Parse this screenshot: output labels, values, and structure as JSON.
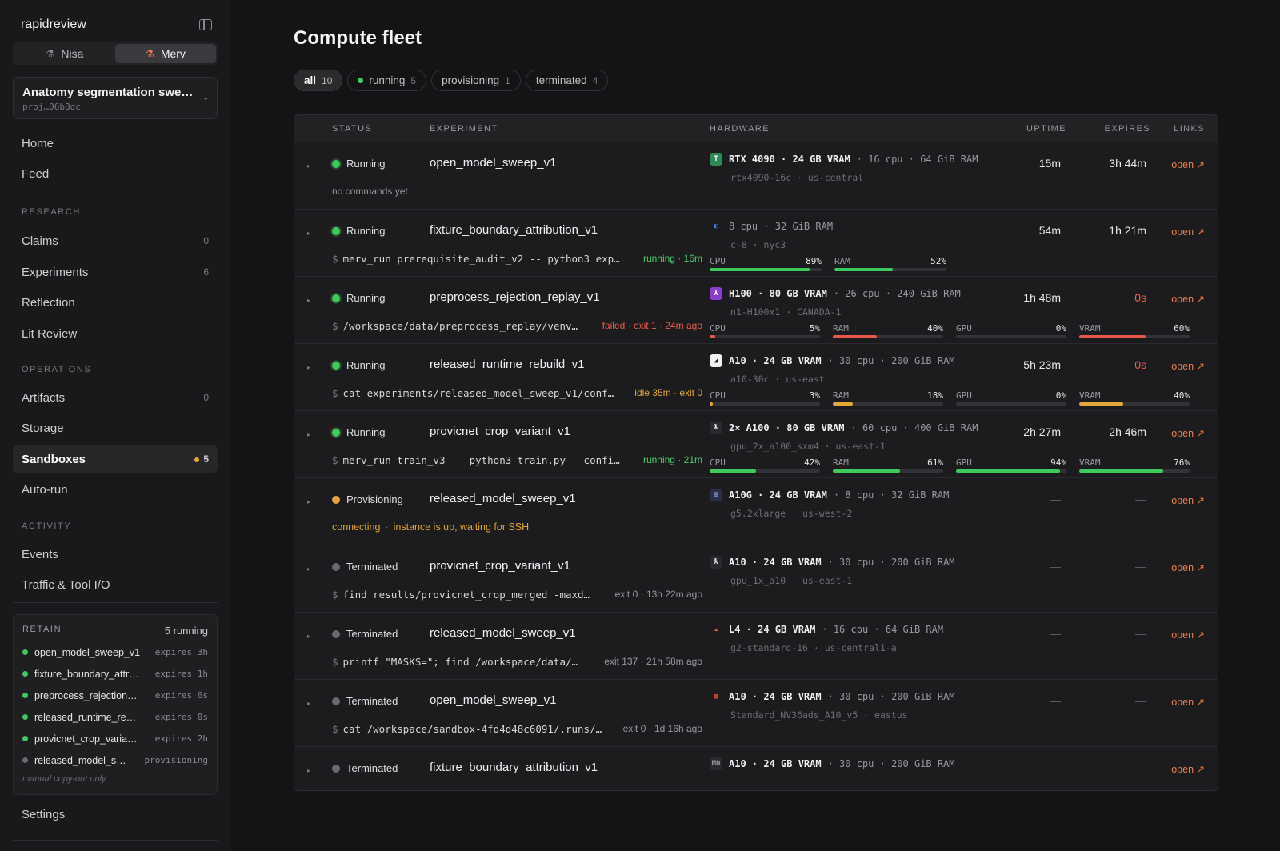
{
  "app": {
    "name": "rapidreview"
  },
  "users": [
    {
      "name": "Nisa",
      "active": false
    },
    {
      "name": "Merv",
      "active": true
    }
  ],
  "project": {
    "name": "Anatomy segmentation swe…",
    "id": "proj…06b8dc"
  },
  "nav": {
    "top": [
      {
        "label": "Home"
      },
      {
        "label": "Feed"
      }
    ],
    "research": {
      "label": "RESEARCH",
      "items": [
        {
          "label": "Claims",
          "count": "0"
        },
        {
          "label": "Experiments",
          "count": "6"
        },
        {
          "label": "Reflection"
        },
        {
          "label": "Lit Review"
        }
      ]
    },
    "operations": {
      "label": "OPERATIONS",
      "items": [
        {
          "label": "Artifacts",
          "count": "0"
        },
        {
          "label": "Storage"
        },
        {
          "label": "Sandboxes",
          "count": "5"
        },
        {
          "label": "Auto-run"
        }
      ]
    },
    "activity": {
      "label": "ACTIVITY",
      "items": [
        {
          "label": "Events"
        },
        {
          "label": "Traffic & Tool I/O"
        }
      ]
    },
    "settings": "Settings"
  },
  "retain": {
    "title": "RETAIN",
    "count": "5 running",
    "items": [
      {
        "name": "open_model_sweep_v1",
        "expires": "expires 3h",
        "status": "running"
      },
      {
        "name": "fixture_boundary_attr…",
        "expires": "expires 1h",
        "status": "running"
      },
      {
        "name": "preprocess_rejection…",
        "expires": "expires 0s",
        "status": "running"
      },
      {
        "name": "released_runtime_re…",
        "expires": "expires 0s",
        "status": "running"
      },
      {
        "name": "provicnet_crop_varia…",
        "expires": "expires 2h",
        "status": "running"
      },
      {
        "name": "released_model_s…",
        "expires": "provisioning",
        "status": "provisioning"
      }
    ],
    "note": "manual copy-out only"
  },
  "page": {
    "title": "Compute fleet"
  },
  "filters": [
    {
      "label": "all",
      "count": "10",
      "active": true
    },
    {
      "label": "running",
      "count": "5",
      "dot": true
    },
    {
      "label": "provisioning",
      "count": "1"
    },
    {
      "label": "terminated",
      "count": "4"
    }
  ],
  "table": {
    "headers": {
      "status": "STATUS",
      "experiment": "EXPERIMENT",
      "hardware": "HARDWARE",
      "uptime": "UPTIME",
      "expires": "EXPIRES",
      "links": "LINKS"
    },
    "link_label": "open ↗",
    "rows": [
      {
        "status": "Running",
        "experiment": "open_model_sweep_v1",
        "cmd_plain": "no commands yet",
        "hw_icon": "T",
        "hw_icon_color": "#ffffff",
        "hw_icon_bg": "#2e8b57",
        "hw_main": "RTX 4090 · 24 GB VRAM",
        "hw_extra": "· 16 cpu · 64 GiB RAM",
        "hw_sub": "rtx4090-16c · us-central",
        "uptime": "15m",
        "expires": "3h 44m"
      },
      {
        "status": "Running",
        "experiment": "fixture_boundary_attribution_v1",
        "cmd": "merv_run prerequisite_audit_v2 -- python3 exp…",
        "cmd_meta": "running · 16m",
        "cmd_meta_color": "green",
        "hw_icon": "◐",
        "hw_icon_color": "#2f8bff",
        "hw_icon_bg": "#1c1c1f",
        "hw_main": "",
        "hw_extra": "8 cpu · 32 GiB RAM",
        "hw_sub": "c-8 · nyc3",
        "meters": [
          {
            "label": "CPU",
            "value": 89,
            "pct": "89%",
            "color": "green"
          },
          {
            "label": "RAM",
            "value": 52,
            "pct": "52%",
            "color": "green"
          }
        ],
        "uptime": "54m",
        "expires": "1h 21m"
      },
      {
        "status": "Running",
        "experiment": "preprocess_rejection_replay_v1",
        "cmd": "/workspace/data/preprocess_replay/venv…",
        "cmd_meta": "failed · exit 1 · 24m ago",
        "cmd_meta_color": "red",
        "hw_icon": "λ",
        "hw_icon_color": "#ffffff",
        "hw_icon_bg": "#8b3fd1",
        "hw_main": "H100 · 80 GB VRAM",
        "hw_extra": "· 26 cpu · 240 GiB RAM",
        "hw_sub": "n1-H100x1 · CANADA-1",
        "meters": [
          {
            "label": "CPU",
            "value": 5,
            "pct": "5%",
            "color": "red"
          },
          {
            "label": "RAM",
            "value": 40,
            "pct": "40%",
            "color": "red"
          },
          {
            "label": "GPU",
            "value": 0,
            "pct": "0%",
            "color": "red"
          },
          {
            "label": "VRAM",
            "value": 60,
            "pct": "60%",
            "color": "red"
          }
        ],
        "uptime": "1h 48m",
        "expires": "0s",
        "expires_danger": true
      },
      {
        "status": "Running",
        "experiment": "released_runtime_rebuild_v1",
        "cmd": "cat experiments/released_model_sweep_v1/conf…",
        "cmd_meta": "idle 35m · exit 0",
        "cmd_meta_color": "amber",
        "hw_icon": "◢",
        "hw_icon_color": "#141416",
        "hw_icon_bg": "#f0f0f0",
        "hw_main": "A10 · 24 GB VRAM",
        "hw_extra": "· 30 cpu · 200 GiB RAM",
        "hw_sub": "a10-30c · us-east",
        "meters": [
          {
            "label": "CPU",
            "value": 3,
            "pct": "3%",
            "color": "amber"
          },
          {
            "label": "RAM",
            "value": 18,
            "pct": "18%",
            "color": "amber"
          },
          {
            "label": "GPU",
            "value": 0,
            "pct": "0%",
            "color": "amber"
          },
          {
            "label": "VRAM",
            "value": 40,
            "pct": "40%",
            "color": "amber"
          }
        ],
        "uptime": "5h 23m",
        "expires": "0s",
        "expires_danger": true
      },
      {
        "status": "Running",
        "experiment": "provicnet_crop_variant_v1",
        "cmd": "merv_run train_v3 -- python3 train.py --confi…",
        "cmd_meta": "running · 21m",
        "cmd_meta_color": "green",
        "hw_icon": "ƛ",
        "hw_icon_color": "#e6e6e8",
        "hw_icon_bg": "#2a2a2e",
        "hw_main": "2× A100 · 80 GB VRAM",
        "hw_extra": "· 60 cpu · 400 GiB RAM",
        "hw_sub": "gpu_2x_a100_sxm4 · us-east-1",
        "meters": [
          {
            "label": "CPU",
            "value": 42,
            "pct": "42%",
            "color": "green"
          },
          {
            "label": "RAM",
            "value": 61,
            "pct": "61%",
            "color": "green"
          },
          {
            "label": "GPU",
            "value": 94,
            "pct": "94%",
            "color": "green"
          },
          {
            "label": "VRAM",
            "value": 76,
            "pct": "76%",
            "color": "green"
          }
        ],
        "uptime": "2h 27m",
        "expires": "2h 46m"
      },
      {
        "status": "Provisioning",
        "experiment": "released_model_sweep_v1",
        "connecting": "connecting",
        "connecting_detail": "instance is up, waiting for SSH",
        "hw_icon": "≡",
        "hw_icon_color": "#9ab3ff",
        "hw_icon_bg": "#2a2f45",
        "hw_main": "A10G · 24 GB VRAM",
        "hw_extra": "· 8 cpu · 32 GiB RAM",
        "hw_sub": "g5.2xlarge · us-west-2",
        "uptime": "—",
        "expires": "—",
        "dashes": true
      },
      {
        "status": "Terminated",
        "experiment": "provicnet_crop_variant_v1",
        "cmd": "find results/provicnet_crop_merged -maxd…",
        "cmd_meta": "exit 0 · 13h 22m ago",
        "cmd_meta_color": "gray",
        "hw_icon": "ƛ",
        "hw_icon_color": "#e6e6e8",
        "hw_icon_bg": "#2a2a2e",
        "hw_main": "A10 · 24 GB VRAM",
        "hw_extra": "· 30 cpu · 200 GiB RAM",
        "hw_sub": "gpu_1x_a10 · us-east-1",
        "uptime": "—",
        "expires": "—",
        "dashes": true
      },
      {
        "status": "Terminated",
        "experiment": "released_model_sweep_v1",
        "cmd": "printf \"MASKS=\"; find /workspace/data/…",
        "cmd_meta": "exit 137 · 21h 58m ago",
        "cmd_meta_color": "gray",
        "hw_icon": "☁",
        "hw_icon_color": "#e8584a",
        "hw_icon_bg": "#1c1c1f",
        "hw_main": "L4 · 24 GB VRAM",
        "hw_extra": "· 16 cpu · 64 GiB RAM",
        "hw_sub": "g2-standard-16 · us-central1-a",
        "uptime": "—",
        "expires": "—",
        "dashes": true
      },
      {
        "status": "Terminated",
        "experiment": "open_model_sweep_v1",
        "cmd": "cat /workspace/sandbox-4fd4d48c6091/.runs/…",
        "cmd_meta": "exit 0 · 1d 16h ago",
        "cmd_meta_color": "gray",
        "hw_icon": "▦",
        "hw_icon_color": "#f25022",
        "hw_icon_bg": "#1c1c1f",
        "hw_main": "A10 · 24 GB VRAM",
        "hw_extra": "· 30 cpu · 200 GiB RAM",
        "hw_sub": "Standard_NV36ads_A10_v5 · eastus",
        "uptime": "—",
        "expires": "—",
        "dashes": true
      },
      {
        "status": "Terminated",
        "experiment": "fixture_boundary_attribution_v1",
        "hw_icon": "MD",
        "hw_icon_color": "#9a9a9e",
        "hw_icon_bg": "#2a2a2e",
        "hw_main": "A10 · 24 GB VRAM",
        "hw_extra": "· 30 cpu · 200 GiB RAM",
        "uptime": "—",
        "expires": "—",
        "dashes": true
      }
    ]
  },
  "colors": {
    "accent": "#ef7e4a",
    "running": "#3fcb5c",
    "provisioning": "#e2a63b",
    "terminated": "#6a6a6e",
    "danger": "#ef5c4e"
  }
}
